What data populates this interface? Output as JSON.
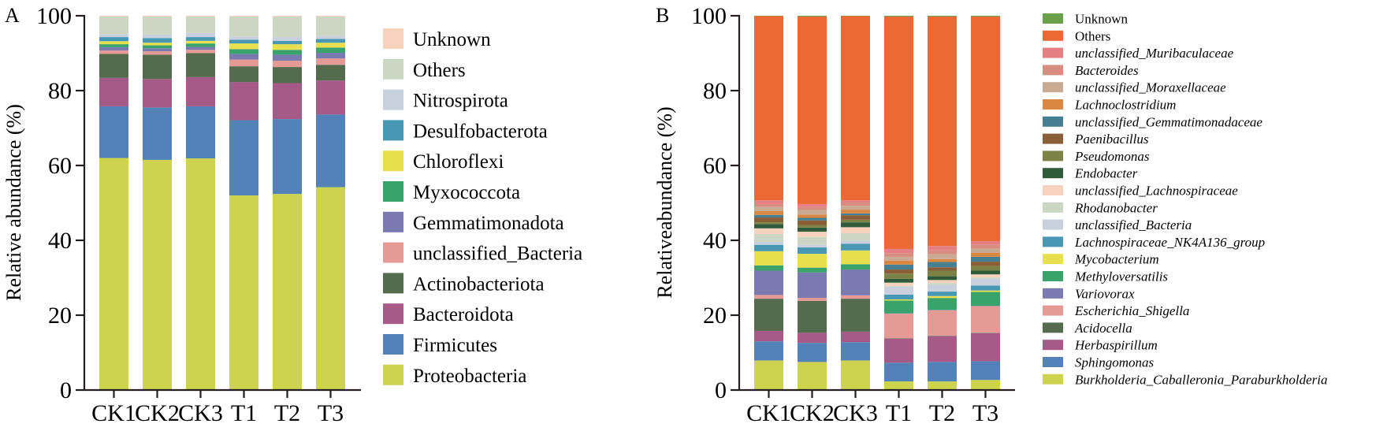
{
  "chart_data": [
    {
      "type": "bar",
      "stacked": true,
      "panel_label": "A",
      "title": "",
      "xlabel": "",
      "ylabel": "Relative abundance (%)",
      "ylim": [
        0,
        100
      ],
      "yticks": [
        0,
        20,
        40,
        60,
        80,
        100
      ],
      "grid": false,
      "legend_placement": "right",
      "legend_italic": false,
      "categories": [
        "CK1",
        "CK2",
        "CK3",
        "T1",
        "T2",
        "T3"
      ],
      "series": [
        {
          "name": "Proteobacteria",
          "color": "#cdd34f",
          "values": [
            62.0,
            61.5,
            61.9,
            52.0,
            52.4,
            54.2
          ]
        },
        {
          "name": "Firmicutes",
          "color": "#5282b8",
          "values": [
            13.8,
            14.0,
            13.9,
            20.1,
            20.0,
            19.4
          ]
        },
        {
          "name": "Bacteroidota",
          "color": "#a65a88",
          "values": [
            7.6,
            7.6,
            7.8,
            10.2,
            9.6,
            9.1
          ]
        },
        {
          "name": "Actinobacteriota",
          "color": "#556b4e",
          "values": [
            6.4,
            6.5,
            6.4,
            4.2,
            4.3,
            4.2
          ]
        },
        {
          "name": "unclassified_Bacteria",
          "color": "#e59a95",
          "values": [
            0.9,
            0.9,
            0.9,
            1.8,
            1.7,
            1.7
          ]
        },
        {
          "name": "Gemmatimonadota",
          "color": "#7a7ab0",
          "values": [
            0.9,
            0.8,
            0.8,
            1.5,
            1.6,
            1.5
          ]
        },
        {
          "name": "Myxococcota",
          "color": "#3aa36b",
          "values": [
            0.8,
            0.8,
            0.9,
            1.3,
            1.3,
            1.4
          ]
        },
        {
          "name": "Chloroflexi",
          "color": "#e8df4f",
          "values": [
            0.8,
            0.7,
            0.7,
            1.5,
            1.5,
            1.3
          ]
        },
        {
          "name": "Desulfobacterota",
          "color": "#4898b4",
          "values": [
            1.1,
            1.2,
            1.0,
            1.0,
            0.9,
            1.0
          ]
        },
        {
          "name": "Nitrospirota",
          "color": "#c8d0de",
          "values": [
            0.8,
            1.0,
            1.1,
            0.9,
            1.0,
            0.9
          ]
        },
        {
          "name": "Others",
          "color": "#cbd7c3",
          "values": [
            4.7,
            4.8,
            4.4,
            5.3,
            5.5,
            5.1
          ]
        },
        {
          "name": "Unknown",
          "color": "#f8d2bd",
          "values": [
            0.2,
            0.2,
            0.2,
            0.2,
            0.2,
            0.2
          ]
        }
      ]
    },
    {
      "type": "bar",
      "stacked": true,
      "panel_label": "B",
      "title": "",
      "xlabel": "",
      "ylabel": "Relativeabundance (%)",
      "ylim": [
        0,
        100
      ],
      "yticks": [
        0,
        20,
        40,
        60,
        80,
        100
      ],
      "grid": false,
      "legend_placement": "right",
      "legend_italic": true,
      "legend_upright": [
        "Others",
        "Unknown"
      ],
      "categories": [
        "CK1",
        "CK2",
        "CK3",
        "T1",
        "T2",
        "T3"
      ],
      "series": [
        {
          "name": "Burkholderia_Caballeronia_Paraburkholderia",
          "color": "#cdd34f",
          "values": [
            7.9,
            7.5,
            7.9,
            2.3,
            2.3,
            2.7
          ]
        },
        {
          "name": "Sphingomonas",
          "color": "#5282b8",
          "values": [
            5.1,
            5.1,
            4.9,
            5.0,
            5.2,
            5.0
          ]
        },
        {
          "name": "Herbaspirillum",
          "color": "#a65a88",
          "values": [
            2.8,
            2.7,
            2.8,
            6.4,
            6.9,
            7.5
          ]
        },
        {
          "name": "Acidocella",
          "color": "#556b4e",
          "values": [
            8.6,
            8.5,
            8.8,
            0.1,
            0.1,
            0.1
          ]
        },
        {
          "name": "Escherichia_Shigella",
          "color": "#e59a95",
          "values": [
            1.0,
            0.8,
            0.9,
            6.6,
            6.8,
            7.1
          ]
        },
        {
          "name": "Variovorax",
          "color": "#7a7ab0",
          "values": [
            6.5,
            6.8,
            6.9,
            0.1,
            0.1,
            0.1
          ]
        },
        {
          "name": "Methyloversatilis",
          "color": "#3aa36b",
          "values": [
            1.4,
            1.3,
            1.4,
            3.4,
            3.2,
            3.7
          ]
        },
        {
          "name": "Mycobacterium",
          "color": "#e8df4f",
          "values": [
            3.8,
            3.7,
            3.7,
            0.3,
            0.5,
            0.4
          ]
        },
        {
          "name": "Lachnospiraceae_NK4A136_group",
          "color": "#4898b4",
          "values": [
            1.7,
            1.7,
            1.8,
            1.3,
            1.2,
            1.3
          ]
        },
        {
          "name": "unclassified_Bacteria",
          "color": "#c8d0de",
          "values": [
            0.8,
            0.7,
            0.8,
            2.1,
            1.8,
            1.9
          ]
        },
        {
          "name": "Rhodanobacter",
          "color": "#cbd7c3",
          "values": [
            2.1,
            2.1,
            2.0,
            0.2,
            0.5,
            0.3
          ]
        },
        {
          "name": "unclassified_Lachnospiraceae",
          "color": "#f8d2bd",
          "values": [
            1.5,
            1.4,
            1.6,
            0.9,
            0.8,
            0.8
          ]
        },
        {
          "name": "Endobacter",
          "color": "#2f5b3a",
          "values": [
            1.1,
            1.1,
            1.3,
            1.0,
            1.0,
            1.0
          ]
        },
        {
          "name": "Pseudomonas",
          "color": "#7c8246",
          "values": [
            0.5,
            0.7,
            0.7,
            1.4,
            1.5,
            1.2
          ]
        },
        {
          "name": "Paenibacillus",
          "color": "#8a5e36",
          "values": [
            1.3,
            1.2,
            1.2,
            1.1,
            0.9,
            1.2
          ]
        },
        {
          "name": "unclassified_Gemmatimonadaceae",
          "color": "#477f92",
          "values": [
            0.7,
            0.7,
            0.5,
            1.3,
            1.4,
            1.3
          ]
        },
        {
          "name": "Lachnoclostridium",
          "color": "#da8743",
          "values": [
            1.0,
            0.9,
            1.0,
            1.1,
            0.8,
            1.1
          ]
        },
        {
          "name": "unclassified_Moraxellaceae",
          "color": "#c9ab94",
          "values": [
            1.1,
            1.2,
            1.0,
            1.0,
            1.3,
            1.1
          ]
        },
        {
          "name": "Bacteroides",
          "color": "#d98d80",
          "values": [
            0.8,
            0.8,
            0.8,
            1.0,
            1.1,
            1.0
          ]
        },
        {
          "name": "unclassified_Muribaculaceae",
          "color": "#e67f83",
          "values": [
            1.0,
            0.8,
            0.7,
            1.1,
            1.1,
            1.0
          ]
        },
        {
          "name": "Others",
          "color": "#ec6835",
          "values": [
            49.2,
            50.1,
            49.2,
            62.1,
            61.3,
            60.0
          ]
        },
        {
          "name": "Unknown",
          "color": "#6ba04a",
          "values": [
            0.1,
            0.2,
            0.1,
            0.2,
            0.2,
            0.2
          ]
        }
      ]
    }
  ]
}
